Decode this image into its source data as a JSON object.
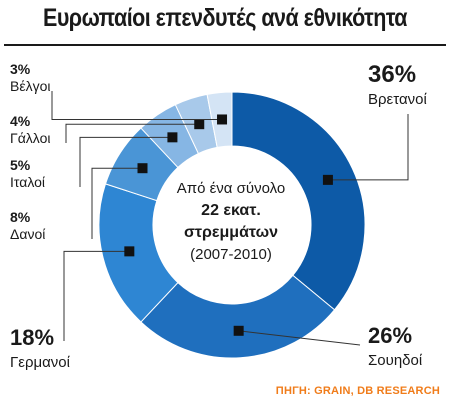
{
  "title": "Ευρωπαίοι επενδυτές ανά εθνικότητα",
  "center": {
    "line1": "Από ένα σύνολο",
    "line2": "22 εκατ.",
    "line3": "στρεμμάτων",
    "line4": "(2007-2010)"
  },
  "source": "ΠΗΓΗ: GRAIN, DB RESEARCH",
  "colors": {
    "slices": [
      "#0d5aa7",
      "#1f6fbe",
      "#2e86d3",
      "#4a95d6",
      "#86b6e4",
      "#a8c9ea",
      "#d4e4f5"
    ],
    "label_orange": "#f07c1a",
    "marker": "#111111"
  },
  "chart_data": {
    "type": "pie",
    "variant": "donut",
    "title": "Ευρωπαίοι επενδυτές ανά εθνικότητα",
    "unit": "%",
    "slices": [
      {
        "label": "Βρετανοί",
        "value": 36,
        "value_label": "36%"
      },
      {
        "label": "Σουηδοί",
        "value": 26,
        "value_label": "26%"
      },
      {
        "label": "Γερμανοί",
        "value": 18,
        "value_label": "18%"
      },
      {
        "label": "Δανοί",
        "value": 8,
        "value_label": "8%"
      },
      {
        "label": "Ιταλοί",
        "value": 5,
        "value_label": "5%"
      },
      {
        "label": "Γάλλοι",
        "value": 4,
        "value_label": "4%"
      },
      {
        "label": "Βέλγοι",
        "value": 3,
        "value_label": "3%"
      }
    ]
  }
}
